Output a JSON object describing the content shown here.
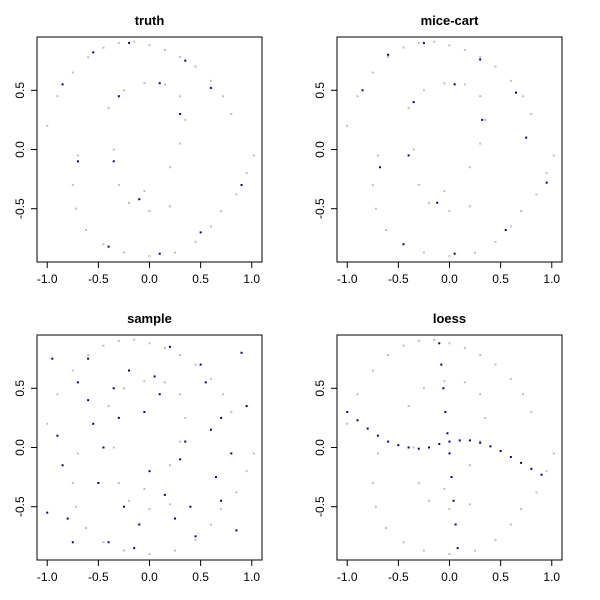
{
  "figure": {
    "colors": {
      "background": "#ffffff",
      "axis": "#000000",
      "observed": "#bebebe",
      "imputed": "#00008b"
    }
  },
  "chart_data": [
    {
      "type": "scatter",
      "title": "truth",
      "xlabel": "",
      "ylabel": "",
      "xlim": [
        -1.1,
        1.1
      ],
      "ylim": [
        -0.95,
        0.95
      ],
      "xticks": [
        -1.0,
        -0.5,
        0.0,
        0.5,
        1.0
      ],
      "xtick_labels": [
        "-1.0",
        "-0.5",
        "0.0",
        "0.5",
        "1.0"
      ],
      "yticks": [
        -0.5,
        0.0,
        0.5
      ],
      "ytick_labels": [
        "-0.5",
        "0.0",
        "0.5"
      ],
      "grid": false,
      "series": [
        {
          "role": "observed",
          "color": "#bebebe",
          "x": [
            -1.0,
            -0.9,
            -0.75,
            -0.6,
            -0.45,
            -0.3,
            -0.15,
            0.0,
            0.15,
            0.3,
            0.45,
            0.6,
            0.72,
            0.8,
            -0.7,
            -0.75,
            -0.72,
            -0.62,
            -0.45,
            -0.25,
            0.0,
            0.25,
            0.45,
            0.6,
            0.7,
            0.85,
            0.95,
            1.02,
            -0.4,
            -0.25,
            -0.05,
            0.15,
            0.3,
            0.35,
            0.3,
            0.2,
            -0.05,
            -0.3,
            -0.35,
            -0.2,
            0.0,
            0.2
          ],
          "y": [
            0.2,
            0.45,
            0.65,
            0.78,
            0.86,
            0.9,
            0.91,
            0.88,
            0.84,
            0.78,
            0.7,
            0.58,
            0.45,
            0.3,
            -0.05,
            -0.3,
            -0.5,
            -0.68,
            -0.8,
            -0.87,
            -0.9,
            -0.87,
            -0.78,
            -0.65,
            -0.52,
            -0.38,
            -0.2,
            -0.05,
            0.35,
            0.5,
            0.56,
            0.55,
            0.45,
            0.25,
            0.05,
            -0.15,
            -0.35,
            -0.3,
            0.0,
            -0.45,
            -0.52,
            -0.48
          ]
        },
        {
          "role": "imputed",
          "color": "#00008b",
          "x": [
            -0.85,
            -0.55,
            -0.2,
            0.35,
            0.6,
            -0.7,
            -0.4,
            0.1,
            0.5,
            0.9,
            -0.3,
            0.1,
            0.3,
            -0.1,
            -0.35
          ],
          "y": [
            0.55,
            0.82,
            0.9,
            0.75,
            0.52,
            -0.1,
            -0.82,
            -0.88,
            -0.7,
            -0.3,
            0.45,
            0.56,
            0.3,
            -0.42,
            -0.1
          ]
        }
      ]
    },
    {
      "type": "scatter",
      "title": "mice-cart",
      "xlabel": "",
      "ylabel": "",
      "xlim": [
        -1.1,
        1.1
      ],
      "ylim": [
        -0.95,
        0.95
      ],
      "xticks": [
        -1.0,
        -0.5,
        0.0,
        0.5,
        1.0
      ],
      "xtick_labels": [
        "-1.0",
        "-0.5",
        "0.0",
        "0.5",
        "1.0"
      ],
      "yticks": [
        -0.5,
        0.0,
        0.5
      ],
      "ytick_labels": [
        "-0.5",
        "0.0",
        "0.5"
      ],
      "grid": false,
      "series": [
        {
          "role": "observed",
          "color": "#bebebe",
          "x": [
            -1.0,
            -0.9,
            -0.75,
            -0.6,
            -0.45,
            -0.3,
            -0.15,
            0.0,
            0.15,
            0.3,
            0.45,
            0.6,
            0.72,
            0.8,
            -0.7,
            -0.75,
            -0.72,
            -0.62,
            -0.45,
            -0.25,
            0.0,
            0.25,
            0.45,
            0.6,
            0.7,
            0.85,
            0.95,
            1.02,
            -0.4,
            -0.25,
            -0.05,
            0.15,
            0.3,
            0.35,
            0.3,
            0.2,
            -0.05,
            -0.3,
            -0.35,
            -0.2,
            0.0,
            0.2
          ],
          "y": [
            0.2,
            0.45,
            0.65,
            0.78,
            0.86,
            0.9,
            0.91,
            0.88,
            0.84,
            0.78,
            0.7,
            0.58,
            0.45,
            0.3,
            -0.05,
            -0.3,
            -0.5,
            -0.68,
            -0.8,
            -0.87,
            -0.9,
            -0.87,
            -0.78,
            -0.65,
            -0.52,
            -0.38,
            -0.2,
            -0.05,
            0.35,
            0.5,
            0.56,
            0.55,
            0.45,
            0.25,
            0.05,
            -0.15,
            -0.35,
            -0.3,
            0.0,
            -0.45,
            -0.52,
            -0.48
          ]
        },
        {
          "role": "imputed",
          "color": "#00008b",
          "x": [
            -0.85,
            -0.6,
            -0.25,
            0.3,
            0.65,
            -0.68,
            -0.45,
            0.05,
            0.55,
            0.95,
            -0.35,
            0.05,
            0.32,
            -0.12,
            -0.4,
            0.75
          ],
          "y": [
            0.5,
            0.8,
            0.9,
            0.76,
            0.48,
            -0.15,
            -0.8,
            -0.88,
            -0.68,
            -0.28,
            0.4,
            0.55,
            0.25,
            -0.45,
            -0.05,
            0.1
          ]
        }
      ]
    },
    {
      "type": "scatter",
      "title": "sample",
      "xlabel": "",
      "ylabel": "",
      "xlim": [
        -1.1,
        1.1
      ],
      "ylim": [
        -0.95,
        0.95
      ],
      "xticks": [
        -1.0,
        -0.5,
        0.0,
        0.5,
        1.0
      ],
      "xtick_labels": [
        "-1.0",
        "-0.5",
        "0.0",
        "0.5",
        "1.0"
      ],
      "yticks": [
        -0.5,
        0.0,
        0.5
      ],
      "ytick_labels": [
        "-0.5",
        "0.0",
        "0.5"
      ],
      "grid": false,
      "series": [
        {
          "role": "observed",
          "color": "#bebebe",
          "x": [
            -1.0,
            -0.9,
            -0.75,
            -0.6,
            -0.45,
            -0.3,
            -0.15,
            0.0,
            0.15,
            0.3,
            0.45,
            0.6,
            0.72,
            0.8,
            -0.7,
            -0.75,
            -0.72,
            -0.62,
            -0.45,
            -0.25,
            0.0,
            0.25,
            0.45,
            0.6,
            0.7,
            0.85,
            0.95,
            1.02,
            -0.4,
            -0.25,
            -0.05,
            0.15,
            0.3,
            0.35,
            0.3,
            0.2,
            -0.05,
            -0.3,
            -0.35,
            -0.2,
            0.0,
            0.2
          ],
          "y": [
            0.2,
            0.45,
            0.65,
            0.78,
            0.86,
            0.9,
            0.91,
            0.88,
            0.84,
            0.78,
            0.7,
            0.58,
            0.45,
            0.3,
            -0.05,
            -0.3,
            -0.5,
            -0.68,
            -0.8,
            -0.87,
            -0.9,
            -0.87,
            -0.78,
            -0.65,
            -0.52,
            -0.38,
            -0.2,
            -0.05,
            0.35,
            0.5,
            0.56,
            0.55,
            0.45,
            0.25,
            0.05,
            -0.15,
            -0.35,
            -0.3,
            0.0,
            -0.45,
            -0.52,
            -0.48
          ]
        },
        {
          "role": "imputed",
          "color": "#00008b",
          "x": [
            -0.95,
            -0.8,
            -0.6,
            -0.4,
            -0.2,
            0.0,
            0.2,
            0.4,
            0.6,
            0.85,
            -0.9,
            -0.7,
            -0.5,
            -0.3,
            -0.1,
            0.1,
            0.3,
            0.5,
            0.7,
            0.95,
            -0.85,
            -0.55,
            -0.25,
            0.05,
            0.35,
            0.65,
            0.9,
            -0.75,
            -0.35,
            0.15,
            0.55,
            -0.6,
            -0.05,
            0.45,
            0.8,
            -1.0,
            -0.45,
            0.25,
            0.7,
            -0.15
          ],
          "y": [
            0.75,
            -0.6,
            0.4,
            -0.8,
            0.65,
            -0.2,
            0.85,
            -0.5,
            0.15,
            -0.7,
            0.1,
            0.55,
            -0.3,
            0.25,
            -0.65,
            0.45,
            -0.1,
            0.7,
            -0.45,
            0.35,
            -0.15,
            0.2,
            -0.5,
            0.6,
            0.05,
            -0.25,
            0.8,
            -0.8,
            0.5,
            -0.4,
            0.55,
            0.75,
            0.3,
            -0.75,
            -0.05,
            -0.55,
            0.0,
            -0.6,
            0.25,
            -0.85
          ]
        }
      ]
    },
    {
      "type": "scatter",
      "title": "loess",
      "xlabel": "",
      "ylabel": "",
      "xlim": [
        -1.1,
        1.1
      ],
      "ylim": [
        -0.95,
        0.95
      ],
      "xticks": [
        -1.0,
        -0.5,
        0.0,
        0.5,
        1.0
      ],
      "xtick_labels": [
        "-1.0",
        "-0.5",
        "0.0",
        "0.5",
        "1.0"
      ],
      "yticks": [
        -0.5,
        0.0,
        0.5
      ],
      "ytick_labels": [
        "-0.5",
        "0.0",
        "0.5"
      ],
      "grid": false,
      "series": [
        {
          "role": "observed",
          "color": "#bebebe",
          "x": [
            -1.0,
            -0.9,
            -0.75,
            -0.6,
            -0.45,
            -0.3,
            -0.15,
            0.0,
            0.15,
            0.3,
            0.45,
            0.6,
            0.72,
            0.8,
            -0.7,
            -0.75,
            -0.72,
            -0.62,
            -0.45,
            -0.25,
            0.0,
            0.25,
            0.45,
            0.6,
            0.7,
            0.85,
            0.95,
            1.02,
            -0.4,
            -0.25,
            -0.05,
            0.15,
            0.3,
            0.35,
            0.3,
            0.2,
            -0.05,
            -0.3,
            -0.35,
            -0.2,
            0.0,
            0.2
          ],
          "y": [
            0.2,
            0.45,
            0.65,
            0.78,
            0.86,
            0.9,
            0.91,
            0.88,
            0.84,
            0.78,
            0.7,
            0.58,
            0.45,
            0.3,
            -0.05,
            -0.3,
            -0.5,
            -0.68,
            -0.8,
            -0.87,
            -0.9,
            -0.87,
            -0.78,
            -0.65,
            -0.52,
            -0.38,
            -0.2,
            -0.05,
            0.35,
            0.5,
            0.56,
            0.55,
            0.45,
            0.25,
            0.05,
            -0.15,
            -0.35,
            -0.3,
            0.0,
            -0.45,
            -0.52,
            -0.48
          ]
        },
        {
          "role": "imputed",
          "color": "#00008b",
          "x": [
            -1.0,
            -0.9,
            -0.8,
            -0.7,
            -0.6,
            -0.5,
            -0.4,
            -0.3,
            -0.2,
            -0.1,
            0.0,
            0.1,
            0.2,
            0.3,
            0.4,
            0.5,
            0.6,
            0.7,
            0.8,
            0.9,
            -0.1,
            -0.08,
            -0.06,
            -0.04,
            -0.02,
            0.0,
            0.02,
            0.04,
            0.06,
            0.08
          ],
          "y": [
            0.3,
            0.23,
            0.16,
            0.1,
            0.05,
            0.02,
            0.0,
            -0.01,
            0.0,
            0.03,
            0.05,
            0.06,
            0.06,
            0.04,
            0.01,
            -0.03,
            -0.08,
            -0.13,
            -0.18,
            -0.23,
            0.88,
            0.7,
            0.5,
            0.3,
            0.12,
            -0.05,
            -0.25,
            -0.45,
            -0.65,
            -0.85
          ]
        }
      ]
    }
  ]
}
